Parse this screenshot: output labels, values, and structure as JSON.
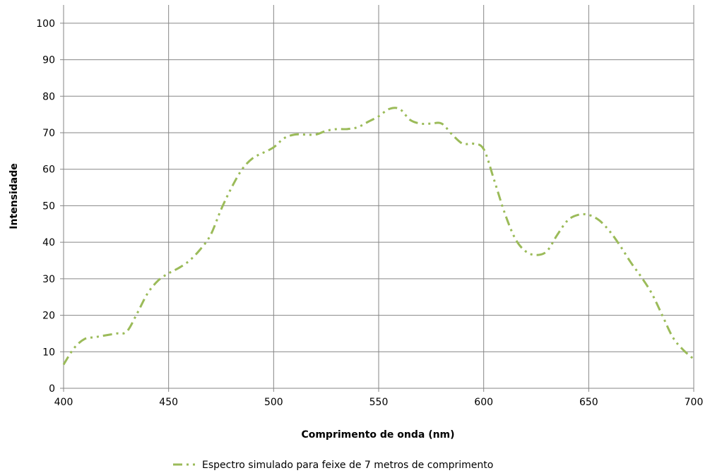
{
  "chart_data": {
    "type": "line",
    "xlabel": "Comprimento de onda (nm)",
    "ylabel": "Intensidade",
    "xlim": [
      400,
      700
    ],
    "ylim": [
      0,
      105
    ],
    "xticks": [
      400,
      450,
      500,
      550,
      600,
      650,
      700
    ],
    "yticks": [
      0,
      10,
      20,
      30,
      40,
      50,
      60,
      70,
      80,
      90,
      100
    ],
    "grid": true,
    "legend_position": "bottom",
    "series": [
      {
        "name": "Espectro simulado para feixe de 7 metros de comprimento",
        "color": "#9bbb59",
        "line_style": "dash-dot-dot",
        "x": [
          400,
          405,
          410,
          415,
          420,
          425,
          430,
          435,
          440,
          445,
          450,
          455,
          460,
          465,
          470,
          475,
          480,
          485,
          490,
          495,
          500,
          505,
          510,
          515,
          520,
          525,
          530,
          535,
          540,
          545,
          550,
          555,
          560,
          565,
          570,
          575,
          580,
          585,
          590,
          595,
          600,
          605,
          610,
          615,
          620,
          625,
          630,
          635,
          640,
          645,
          650,
          655,
          660,
          665,
          670,
          675,
          680,
          685,
          690,
          695,
          700
        ],
        "y": [
          6.5,
          11,
          13.5,
          14,
          14.5,
          15,
          15.5,
          20.5,
          26,
          29.5,
          31.5,
          33,
          35,
          38,
          42,
          49,
          55,
          60,
          63,
          64.5,
          66,
          68.5,
          69.5,
          69.5,
          69.5,
          70.5,
          71,
          71,
          71.5,
          73,
          74.5,
          76.5,
          76.5,
          73.5,
          72.5,
          72.5,
          72.5,
          69.5,
          67,
          67,
          65.5,
          57,
          48,
          41,
          37.5,
          36.5,
          37.5,
          42,
          46,
          47.5,
          47.5,
          46,
          43,
          39,
          34.5,
          30.5,
          26,
          20,
          14,
          10.5,
          8
        ]
      }
    ]
  }
}
